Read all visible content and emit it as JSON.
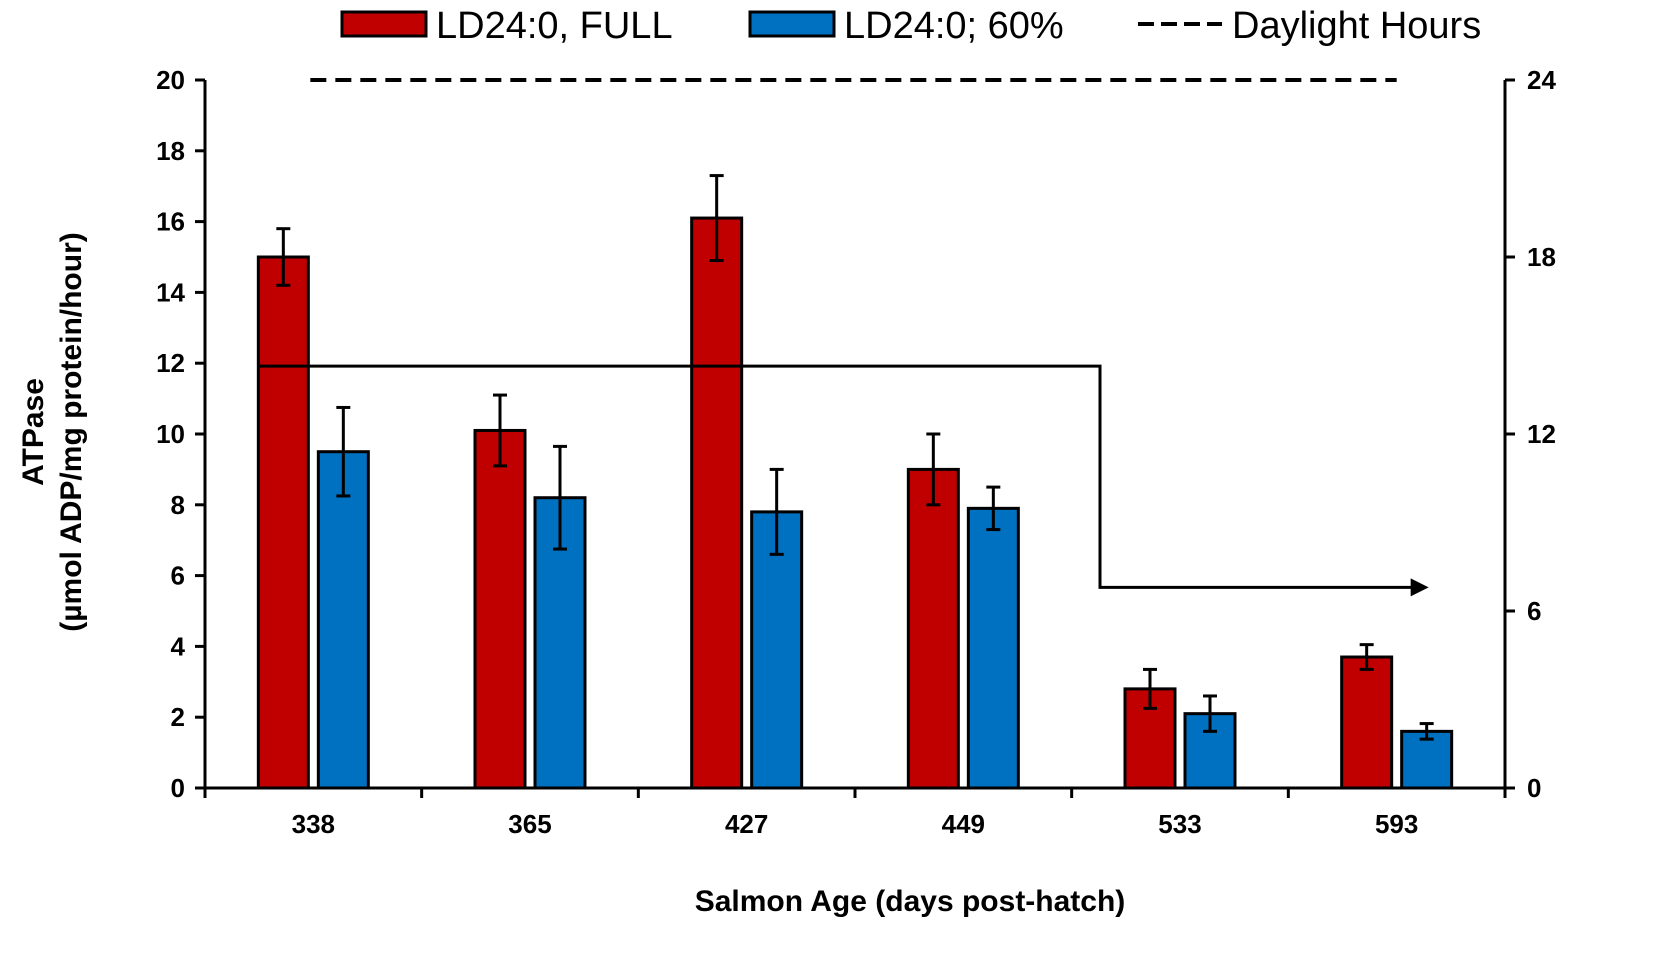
{
  "chart_data": {
    "type": "bar",
    "categories": [
      "338",
      "365",
      "427",
      "449",
      "533",
      "593"
    ],
    "series": [
      {
        "name": "LD24:0, FULL",
        "color": "#c00000",
        "values": [
          15.0,
          10.1,
          16.1,
          9.0,
          2.8,
          3.7
        ],
        "errors": [
          0.8,
          1.0,
          1.2,
          1.0,
          0.55,
          0.35
        ]
      },
      {
        "name": "LD24:0; 60%",
        "color": "#0070c0",
        "values": [
          9.5,
          8.2,
          7.8,
          7.9,
          2.1,
          1.6
        ],
        "errors": [
          1.25,
          1.45,
          1.2,
          0.6,
          0.5,
          0.22
        ]
      }
    ],
    "daylight": {
      "name": "Daylight Hours",
      "dashed_level": 24,
      "solid_levels": [
        {
          "from": "338",
          "to": "533",
          "value": 14.3
        },
        {
          "from": "533",
          "to": "593",
          "value": 6.8
        }
      ]
    },
    "ylabel_line1": "ATPase",
    "ylabel_line2": "(µmol ADP/mg protein/hour)",
    "xlabel": "Salmon Age (days post-hatch)",
    "ylim": [
      0,
      20
    ],
    "yticks": [
      "0",
      "2",
      "4",
      "6",
      "8",
      "10",
      "12",
      "14",
      "16",
      "18",
      "20"
    ],
    "y2lim": [
      0,
      24
    ],
    "y2ticks": [
      "0",
      "6",
      "12",
      "18",
      "24"
    ],
    "grid": false,
    "legend_position": "top"
  }
}
